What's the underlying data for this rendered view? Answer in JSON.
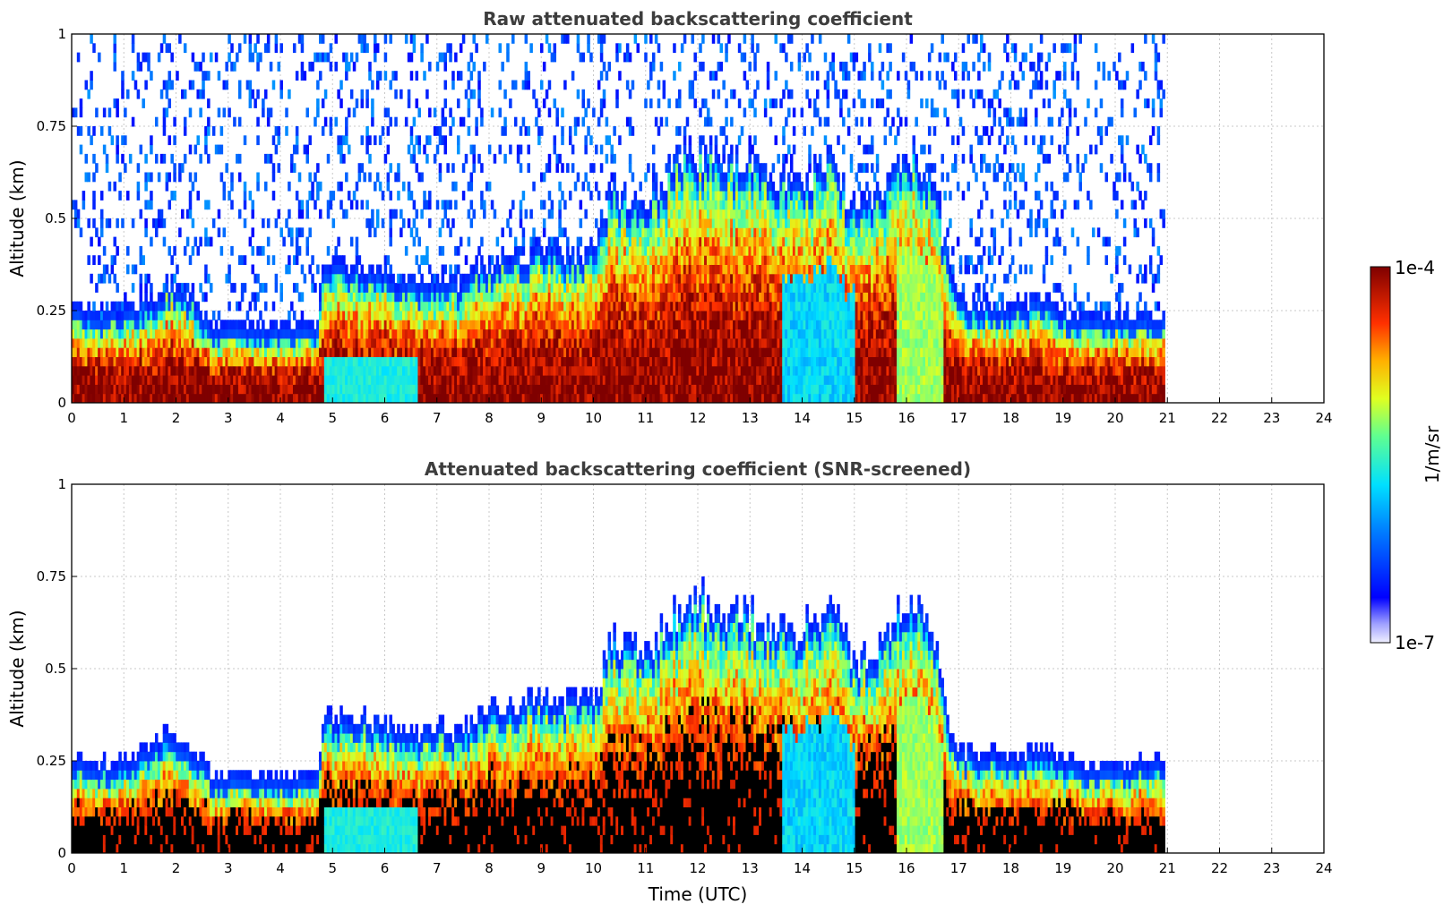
{
  "chart_data": [
    {
      "type": "heatmap",
      "title": "Raw attenuated backscattering coefficient",
      "xlabel": "",
      "ylabel": "Altitude (km)",
      "xlim": [
        0,
        24
      ],
      "ylim": [
        0,
        1
      ],
      "xticks": [
        "0",
        "1",
        "2",
        "3",
        "4",
        "5",
        "6",
        "7",
        "8",
        "9",
        "10",
        "11",
        "12",
        "13",
        "14",
        "15",
        "16",
        "17",
        "18",
        "19",
        "20",
        "21",
        "22",
        "23",
        "24"
      ],
      "yticks": [
        "0",
        "0.25",
        "0.5",
        "0.75",
        "1"
      ],
      "grid": true,
      "data_end_hour": 20.95,
      "screened": false,
      "layer_top_km": [
        [
          0,
          0.2
        ],
        [
          0.7,
          0.19
        ],
        [
          1.5,
          0.22
        ],
        [
          1.85,
          0.27
        ],
        [
          2.3,
          0.23
        ],
        [
          2.7,
          0.15
        ],
        [
          3.0,
          0.16
        ],
        [
          4.0,
          0.15
        ],
        [
          4.7,
          0.16
        ],
        [
          4.8,
          0.3
        ],
        [
          5.6,
          0.31
        ],
        [
          6.5,
          0.27
        ],
        [
          7.0,
          0.28
        ],
        [
          7.5,
          0.27
        ],
        [
          8.0,
          0.33
        ],
        [
          9.0,
          0.36
        ],
        [
          10.0,
          0.35
        ],
        [
          10.3,
          0.52
        ],
        [
          11.0,
          0.48
        ],
        [
          11.5,
          0.58
        ],
        [
          12.0,
          0.62
        ],
        [
          12.5,
          0.6
        ],
        [
          13.0,
          0.58
        ],
        [
          13.5,
          0.55
        ],
        [
          14.0,
          0.55
        ],
        [
          14.5,
          0.6
        ],
        [
          15.0,
          0.45
        ],
        [
          15.5,
          0.5
        ],
        [
          16.0,
          0.62
        ],
        [
          16.5,
          0.55
        ],
        [
          16.8,
          0.28
        ],
        [
          17.0,
          0.22
        ],
        [
          18.0,
          0.2
        ],
        [
          18.5,
          0.23
        ],
        [
          19.0,
          0.19
        ],
        [
          20.0,
          0.18
        ],
        [
          20.95,
          0.19
        ]
      ],
      "colorbar": {
        "label": "1/m/sr",
        "min_label": "1e-7",
        "max_label": "1e-4",
        "scale": "log",
        "colormap": "jet"
      }
    },
    {
      "type": "heatmap",
      "title": "Attenuated backscattering coefficient (SNR-screened)",
      "xlabel": "Time (UTC)",
      "ylabel": "Altitude (km)",
      "xlim": [
        0,
        24
      ],
      "ylim": [
        0,
        1
      ],
      "xticks": [
        "0",
        "1",
        "2",
        "3",
        "4",
        "5",
        "6",
        "7",
        "8",
        "9",
        "10",
        "11",
        "12",
        "13",
        "14",
        "15",
        "16",
        "17",
        "18",
        "19",
        "20",
        "21",
        "22",
        "23",
        "24"
      ],
      "yticks": [
        "0",
        "0.25",
        "0.5",
        "0.75",
        "1"
      ],
      "grid": true,
      "data_end_hour": 20.95,
      "screened": true,
      "saturated_color": "#000000"
    }
  ],
  "colors": {
    "background": "#ffffff",
    "title": "#3d3d3d",
    "dark_red": "#7f0000",
    "saturated_black": "#000000"
  }
}
